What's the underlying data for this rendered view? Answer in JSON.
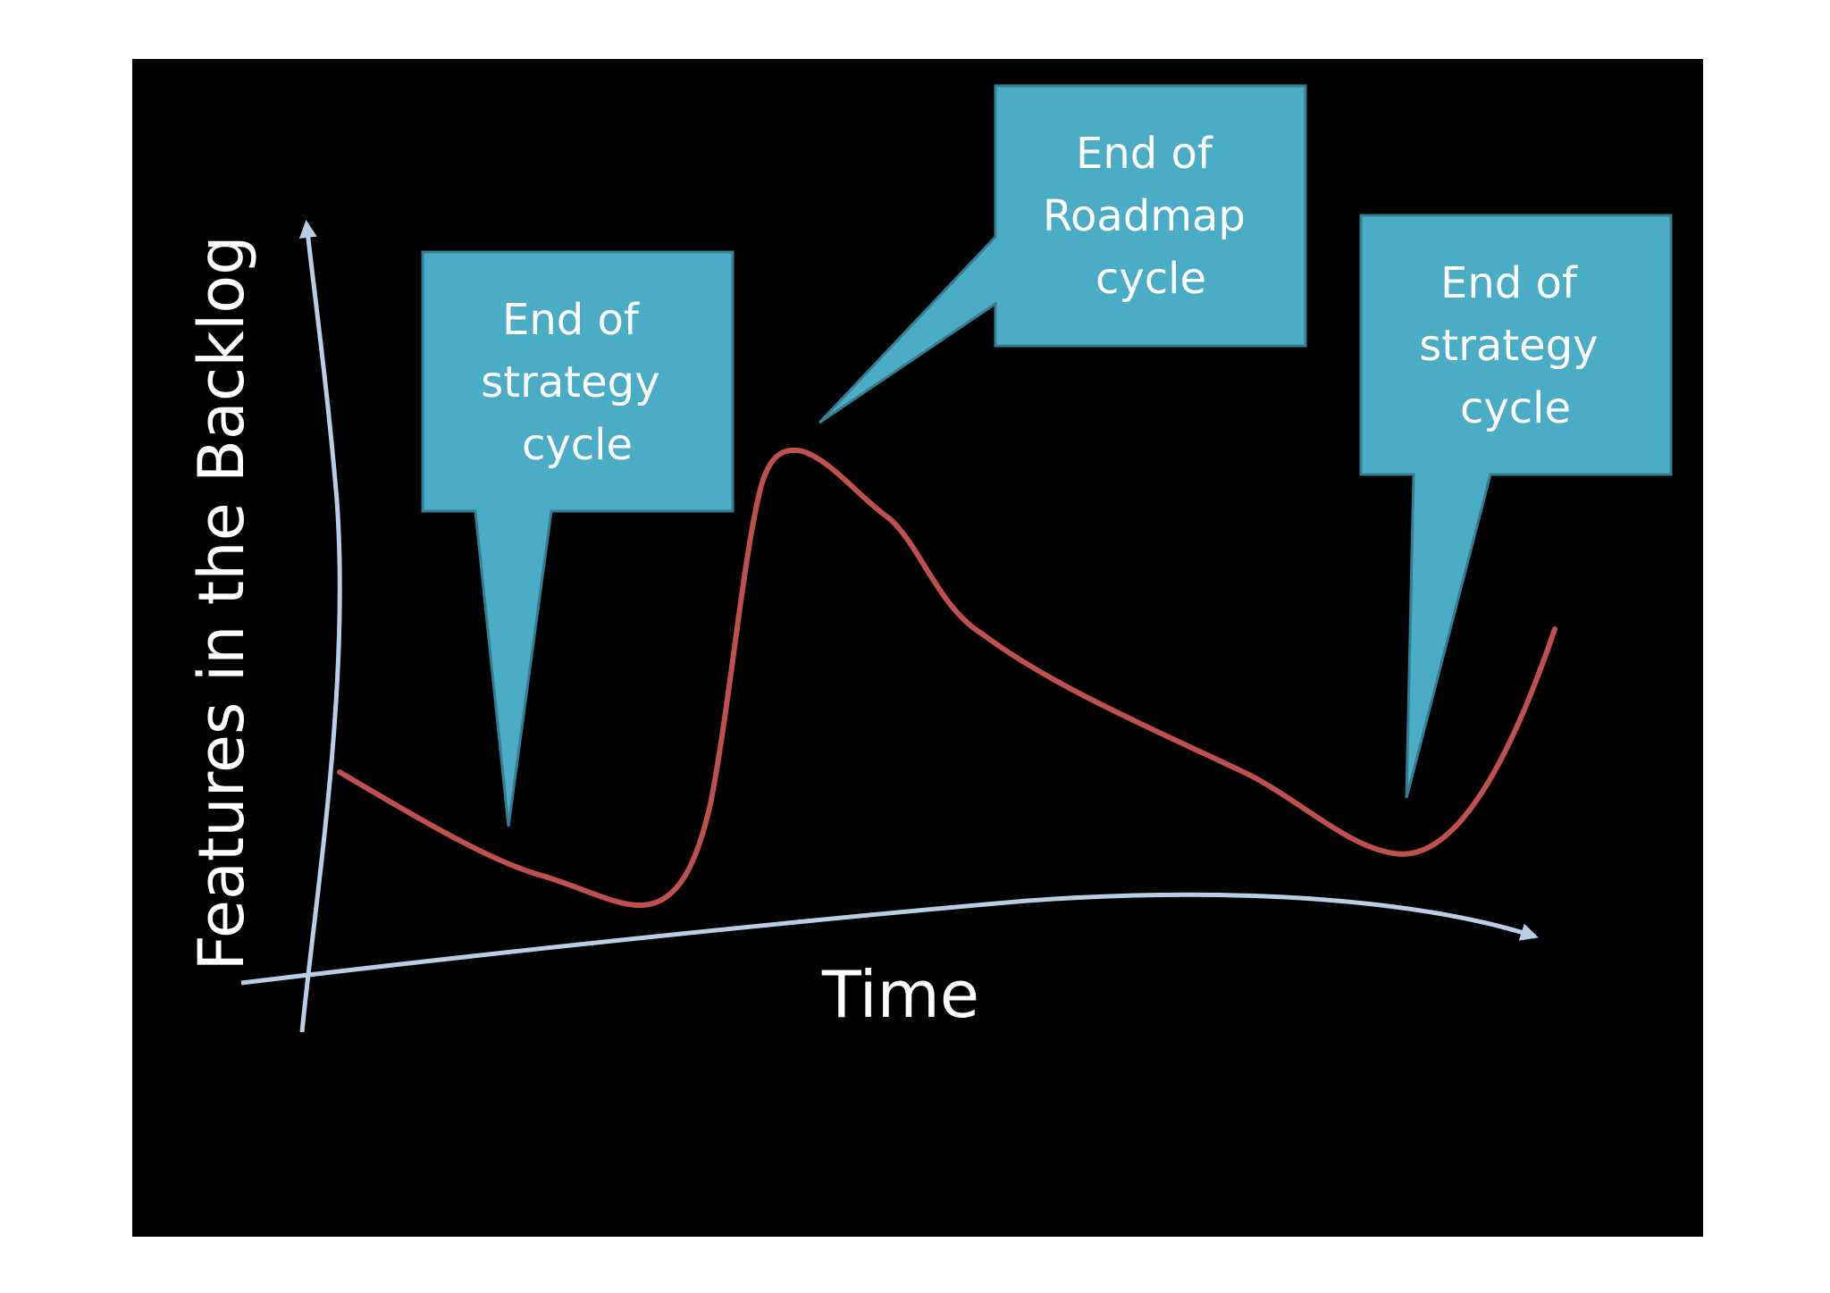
{
  "colors": {
    "background": "#000000",
    "axis": "#b9cde5",
    "curve": "#c0504d",
    "callout_fill": "#4bacc6",
    "callout_stroke": "#357d92",
    "text": "#ffffff"
  },
  "chart_data": {
    "type": "line",
    "xlabel": "Time",
    "ylabel": "Features in the Backlog",
    "grid": false,
    "legend": "none",
    "annotations": [
      {
        "lines": [
          "End of",
          "strategy",
          "cycle"
        ]
      },
      {
        "lines": [
          "End of",
          "Roadmap",
          "cycle"
        ]
      },
      {
        "lines": [
          "End of",
          "strategy",
          "cycle"
        ]
      }
    ]
  }
}
